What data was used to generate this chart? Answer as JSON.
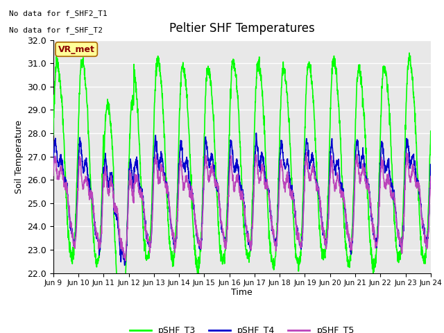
{
  "title": "Peltier SHF Temperatures",
  "ylabel": "Soil Temperature",
  "xlabel": "Time",
  "ylim": [
    22.0,
    32.0
  ],
  "yticks": [
    22.0,
    23.0,
    24.0,
    25.0,
    26.0,
    27.0,
    28.0,
    29.0,
    30.0,
    31.0,
    32.0
  ],
  "xtick_labels": [
    "Jun 9",
    "Jun 10",
    "Jun 11",
    "Jun 12",
    "Jun 13",
    "Jun 14",
    "Jun 15",
    "Jun 16",
    "Jun 17",
    "Jun 18",
    "Jun 19",
    "Jun 20",
    "Jun 21",
    "Jun 22",
    "Jun 23",
    "Jun 24"
  ],
  "color_T3": "#00FF00",
  "color_T4": "#0000CC",
  "color_T5": "#BB44BB",
  "legend_labels": [
    "pSHF_T3",
    "pSHF_T4",
    "pSHF_T5"
  ],
  "annotation_text1": "No data for f_SHF2_T1",
  "annotation_text2": "No data for f_SHF_T2",
  "vr_met_label": "VR_met",
  "background_color": "#E8E8E8",
  "linewidth_T3": 1.2,
  "linewidth_T4": 1.2,
  "linewidth_T5": 1.2
}
